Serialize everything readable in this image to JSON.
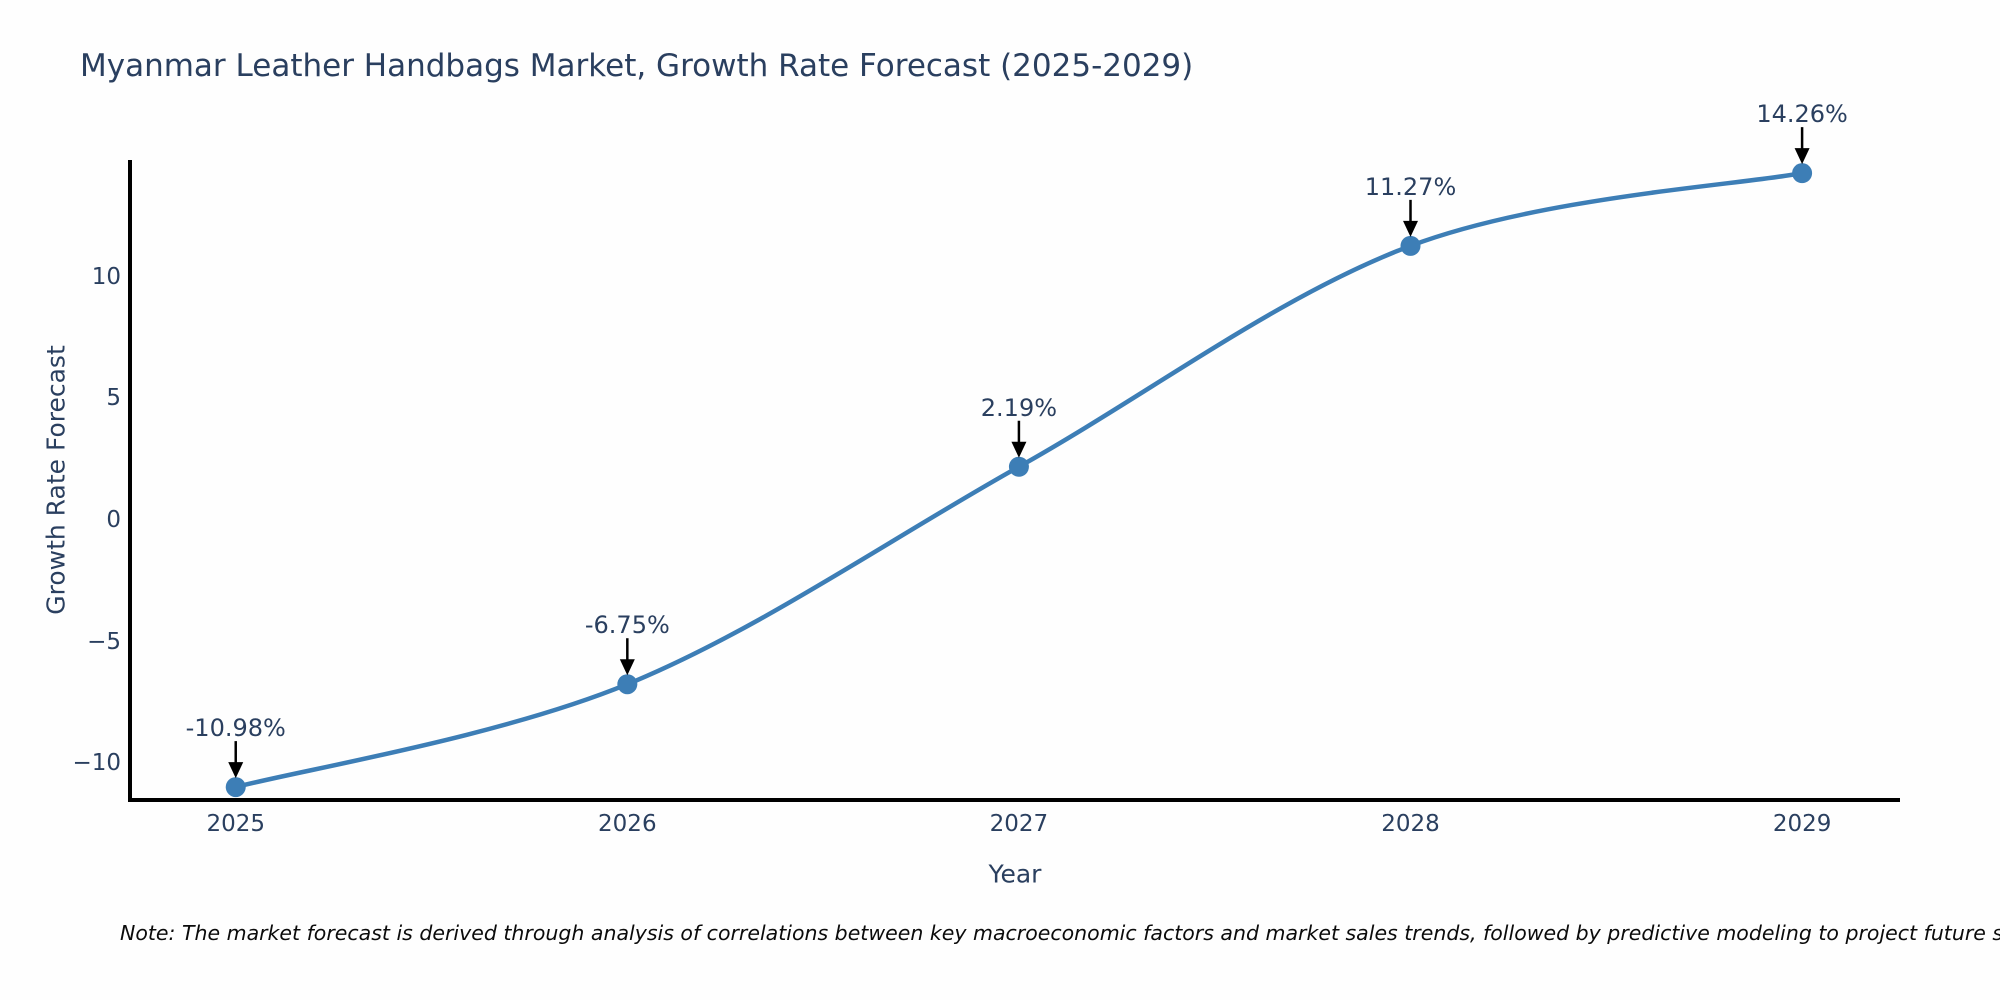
{
  "chart_data": {
    "type": "line",
    "title": "Myanmar Leather Handbags Market, Growth Rate Forecast (2025-2029)",
    "xlabel": "Year",
    "ylabel": "Growth Rate Forecast",
    "x": [
      2025,
      2026,
      2027,
      2028,
      2029
    ],
    "values": [
      -10.98,
      -6.75,
      2.19,
      11.27,
      14.26
    ],
    "point_labels": [
      "-10.98%",
      "-6.75%",
      "2.19%",
      "11.27%",
      "14.26%"
    ],
    "xtick_labels": [
      "2025",
      "2026",
      "2027",
      "2028",
      "2029"
    ],
    "ytick_values": [
      10,
      5,
      0,
      -5,
      -10
    ],
    "ytick_labels": [
      "10",
      "5",
      "0",
      "−5",
      "−10"
    ],
    "xlim": [
      2024.73,
      2029.25
    ],
    "ylim": [
      -11.51,
      14.8
    ],
    "grid": false,
    "legend": "none",
    "line_shape": "spline",
    "line_color": "#3d7eb6",
    "marker_color": "#3d7eb6",
    "arrow_color": "#000000",
    "axis_color": "#000000",
    "text_color": "#2a3f5f",
    "note": "Note: The market forecast is derived through analysis of correlations between key macroeconomic factors and market sales trends, followed by predictive modeling to project future sales"
  }
}
